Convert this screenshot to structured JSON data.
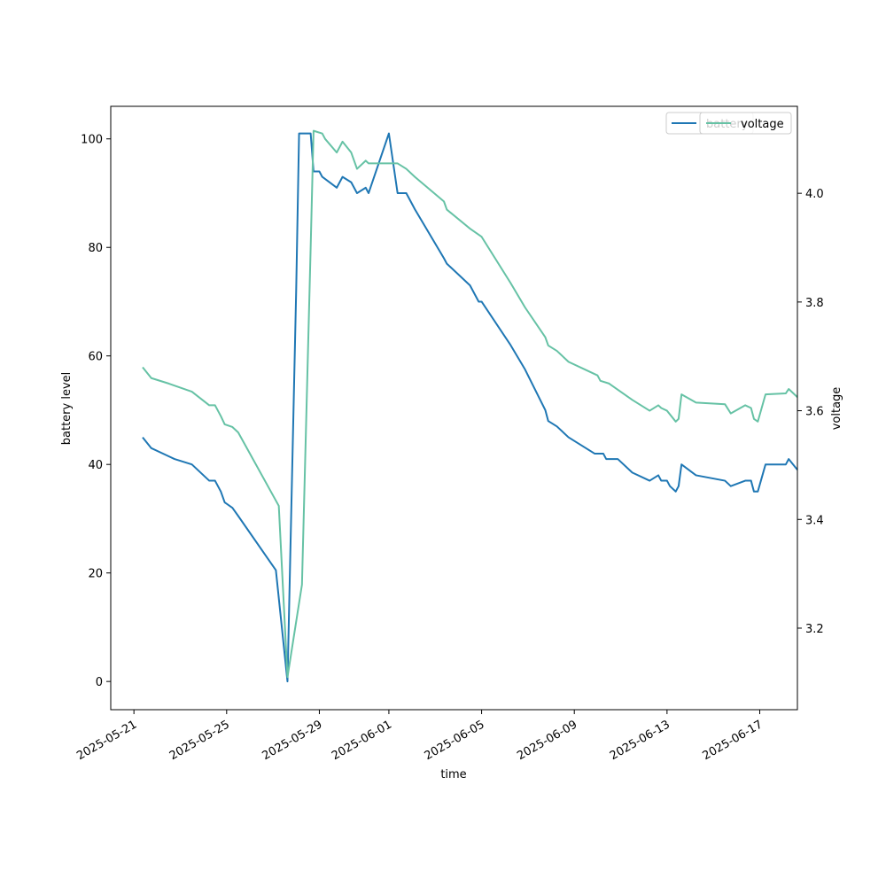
{
  "chart_data": {
    "type": "line",
    "xlabel": "time",
    "ylabel": "battery level",
    "y2label": "voltage",
    "xlim": [
      "2025-05-20T00:00",
      "2025-06-18T15:00"
    ],
    "ylim": [
      -5.2,
      106.0
    ],
    "y2lim": [
      3.05,
      4.16
    ],
    "x_ticks": [
      "2025-05-21",
      "2025-05-25",
      "2025-05-29",
      "2025-06-01",
      "2025-06-05",
      "2025-06-09",
      "2025-06-13",
      "2025-06-17"
    ],
    "y_ticks": [
      0,
      20,
      40,
      60,
      80,
      100
    ],
    "y2_ticks": [
      3.2,
      3.4,
      3.6,
      3.8,
      4.0
    ],
    "legend_position": "top-right",
    "colors": {
      "battery": "#1f77b4",
      "voltage": "#66c2a5"
    },
    "series": [
      {
        "name": "battery",
        "axis": "left",
        "points": [
          [
            "2025-05-21T09:00",
            45
          ],
          [
            "2025-05-21T18:00",
            43
          ],
          [
            "2025-05-22T12:00",
            41.5
          ],
          [
            "2025-05-22T18:00",
            41
          ],
          [
            "2025-05-23T12:00",
            40
          ],
          [
            "2025-05-24T00:00",
            38
          ],
          [
            "2025-05-24T06:00",
            37
          ],
          [
            "2025-05-24T12:00",
            37
          ],
          [
            "2025-05-24T18:00",
            35
          ],
          [
            "2025-05-24T22:00",
            33
          ],
          [
            "2025-05-25T06:00",
            32
          ],
          [
            "2025-05-25T12:00",
            30.5
          ],
          [
            "2025-05-27T03:00",
            20.5
          ],
          [
            "2025-05-27T15:00",
            0
          ],
          [
            "2025-05-28T00:00",
            72
          ],
          [
            "2025-05-28T03:00",
            101
          ],
          [
            "2025-05-28T15:00",
            101
          ],
          [
            "2025-05-28T18:00",
            94
          ],
          [
            "2025-05-29T00:00",
            94
          ],
          [
            "2025-05-29T03:00",
            93
          ],
          [
            "2025-05-29T18:00",
            91
          ],
          [
            "2025-05-30T00:00",
            93
          ],
          [
            "2025-05-30T09:00",
            92
          ],
          [
            "2025-05-30T15:00",
            90
          ],
          [
            "2025-05-31T00:00",
            91
          ],
          [
            "2025-05-31T03:00",
            90
          ],
          [
            "2025-06-01T00:00",
            101
          ],
          [
            "2025-06-01T09:00",
            90
          ],
          [
            "2025-06-01T18:00",
            90
          ],
          [
            "2025-06-02T03:00",
            87
          ],
          [
            "2025-06-03T09:00",
            78
          ],
          [
            "2025-06-03T12:00",
            77
          ],
          [
            "2025-06-04T12:00",
            73
          ],
          [
            "2025-06-04T21:00",
            70
          ],
          [
            "2025-06-05T00:00",
            70
          ],
          [
            "2025-06-06T06:00",
            62
          ],
          [
            "2025-06-06T21:00",
            57.5
          ],
          [
            "2025-06-07T18:00",
            50
          ],
          [
            "2025-06-07T21:00",
            48
          ],
          [
            "2025-06-08T06:00",
            47
          ],
          [
            "2025-06-08T18:00",
            45
          ],
          [
            "2025-06-09T12:00",
            43
          ],
          [
            "2025-06-09T21:00",
            42
          ],
          [
            "2025-06-10T06:00",
            42
          ],
          [
            "2025-06-10T09:00",
            41
          ],
          [
            "2025-06-10T21:00",
            41
          ],
          [
            "2025-06-11T12:00",
            38.5
          ],
          [
            "2025-06-12T06:00",
            37
          ],
          [
            "2025-06-12T15:00",
            38
          ],
          [
            "2025-06-12T18:00",
            37
          ],
          [
            "2025-06-13T00:00",
            37
          ],
          [
            "2025-06-13T03:00",
            36
          ],
          [
            "2025-06-13T09:00",
            35
          ],
          [
            "2025-06-13T12:00",
            36
          ],
          [
            "2025-06-13T15:00",
            40
          ],
          [
            "2025-06-14T06:00",
            38
          ],
          [
            "2025-06-15T12:00",
            37
          ],
          [
            "2025-06-15T18:00",
            36
          ],
          [
            "2025-06-16T09:00",
            37
          ],
          [
            "2025-06-16T15:00",
            37
          ],
          [
            "2025-06-16T18:00",
            35
          ],
          [
            "2025-06-16T22:00",
            35
          ],
          [
            "2025-06-17T06:00",
            40
          ],
          [
            "2025-06-18T03:00",
            40
          ],
          [
            "2025-06-18T06:00",
            41
          ],
          [
            "2025-06-18T15:00",
            39
          ]
        ]
      },
      {
        "name": "voltage",
        "axis": "right",
        "points": [
          [
            "2025-05-21T09:00",
            3.68
          ],
          [
            "2025-05-21T18:00",
            3.66
          ],
          [
            "2025-05-22T12:00",
            3.65
          ],
          [
            "2025-05-23T12:00",
            3.635
          ],
          [
            "2025-05-24T06:00",
            3.61
          ],
          [
            "2025-05-24T12:00",
            3.61
          ],
          [
            "2025-05-24T18:00",
            3.59
          ],
          [
            "2025-05-24T22:00",
            3.575
          ],
          [
            "2025-05-25T06:00",
            3.57
          ],
          [
            "2025-05-25T12:00",
            3.56
          ],
          [
            "2025-05-27T06:00",
            3.425
          ],
          [
            "2025-05-27T15:00",
            3.11
          ],
          [
            "2025-05-28T06:00",
            3.28
          ],
          [
            "2025-05-28T15:00",
            3.9
          ],
          [
            "2025-05-28T18:00",
            4.115
          ],
          [
            "2025-05-29T03:00",
            4.11
          ],
          [
            "2025-05-29T06:00",
            4.1
          ],
          [
            "2025-05-29T18:00",
            4.075
          ],
          [
            "2025-05-30T00:00",
            4.095
          ],
          [
            "2025-05-30T09:00",
            4.075
          ],
          [
            "2025-05-30T15:00",
            4.045
          ],
          [
            "2025-05-31T00:00",
            4.06
          ],
          [
            "2025-05-31T03:00",
            4.055
          ],
          [
            "2025-06-01T00:00",
            4.055
          ],
          [
            "2025-06-01T09:00",
            4.055
          ],
          [
            "2025-06-01T18:00",
            4.045
          ],
          [
            "2025-06-02T03:00",
            4.03
          ],
          [
            "2025-06-03T09:00",
            3.985
          ],
          [
            "2025-06-03T12:00",
            3.97
          ],
          [
            "2025-06-04T12:00",
            3.935
          ],
          [
            "2025-06-05T00:00",
            3.92
          ],
          [
            "2025-06-06T06:00",
            3.835
          ],
          [
            "2025-06-06T21:00",
            3.79
          ],
          [
            "2025-06-07T18:00",
            3.735
          ],
          [
            "2025-06-07T21:00",
            3.72
          ],
          [
            "2025-06-08T06:00",
            3.71
          ],
          [
            "2025-06-08T18:00",
            3.69
          ],
          [
            "2025-06-09T12:00",
            3.675
          ],
          [
            "2025-06-10T00:00",
            3.665
          ],
          [
            "2025-06-10T03:00",
            3.655
          ],
          [
            "2025-06-10T12:00",
            3.65
          ],
          [
            "2025-06-11T12:00",
            3.62
          ],
          [
            "2025-06-12T06:00",
            3.6
          ],
          [
            "2025-06-12T15:00",
            3.61
          ],
          [
            "2025-06-12T18:00",
            3.605
          ],
          [
            "2025-06-13T00:00",
            3.6
          ],
          [
            "2025-06-13T09:00",
            3.58
          ],
          [
            "2025-06-13T12:00",
            3.585
          ],
          [
            "2025-06-13T15:00",
            3.63
          ],
          [
            "2025-06-14T06:00",
            3.615
          ],
          [
            "2025-06-15T12:00",
            3.612
          ],
          [
            "2025-06-15T18:00",
            3.595
          ],
          [
            "2025-06-16T09:00",
            3.61
          ],
          [
            "2025-06-16T15:00",
            3.605
          ],
          [
            "2025-06-16T18:00",
            3.585
          ],
          [
            "2025-06-16T22:00",
            3.58
          ],
          [
            "2025-06-17T06:00",
            3.63
          ],
          [
            "2025-06-18T03:00",
            3.632
          ],
          [
            "2025-06-18T06:00",
            3.64
          ],
          [
            "2025-06-18T15:00",
            3.625
          ]
        ]
      }
    ]
  }
}
